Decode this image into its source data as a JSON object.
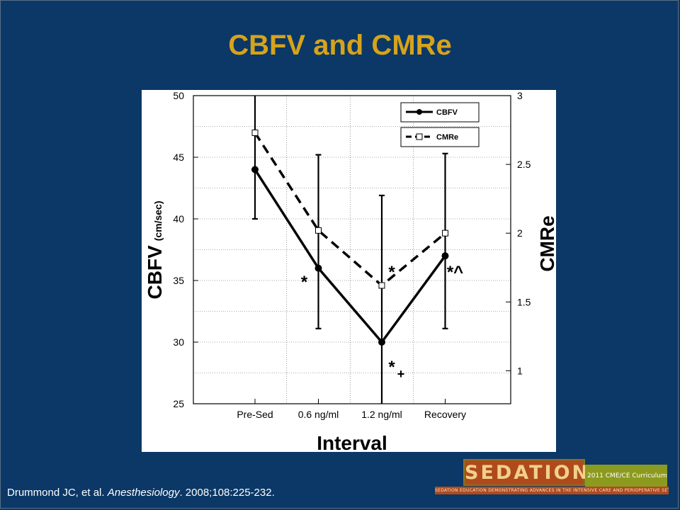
{
  "slide": {
    "title": "CBFV and CMRe",
    "citation_authors": "Drummond JC, et al.",
    "citation_journal": "Anesthesiology",
    "citation_rest": ". 2008;108:225-232."
  },
  "logo": {
    "main": "SEDATION™",
    "side": "2011 CME/CE Curriculum",
    "strip": "SEDATION EDUCATION DEMONSTRATING ADVANCES IN THE INTENSIVE CARE AND PERIOPERATIVE SETTINGS"
  },
  "colors": {
    "background": "#0b3866",
    "title": "#d7a31a",
    "citation": "#ffffff",
    "logo_orange": "#b04a1e",
    "logo_olive": "#8c9a1f"
  },
  "chart_data": {
    "type": "line",
    "xlabel": "Interval",
    "ylabel_main": "CBFV",
    "ylabel_unit": "(cm/sec)",
    "y2label": "CMRe",
    "categories": [
      "Pre-Sed",
      "0.6 ng/ml",
      "1.2 ng/ml",
      "Recovery"
    ],
    "ylim": [
      25,
      50
    ],
    "yticks": [
      25,
      30,
      35,
      40,
      45,
      50
    ],
    "y2lim": [
      0.76,
      3
    ],
    "y2ticks": [
      1,
      1.5,
      2,
      2.5,
      3
    ],
    "grid": true,
    "legend_position": "top-right",
    "series": [
      {
        "name": "CBFV",
        "axis": "left",
        "style": "solid",
        "marker": "filled-circle",
        "values": [
          44,
          36,
          30,
          37
        ],
        "error_upper": [
          50,
          45.2,
          41.9,
          45.3
        ],
        "error_lower": [
          40,
          31.1,
          25,
          31.1
        ]
      },
      {
        "name": "CMRe",
        "axis": "right",
        "style": "dashed",
        "marker": "open-square",
        "values": [
          2.73,
          2.02,
          1.62,
          2.0
        ]
      }
    ],
    "annotations": [
      {
        "text": "*",
        "category": "0.6 ng/ml",
        "value": 35
      },
      {
        "text": "*",
        "category": "1.2 ng/ml",
        "value": 35.8
      },
      {
        "text": "*",
        "category": "1.2 ng/ml",
        "value": 28.1,
        "sub": "+"
      },
      {
        "text": "*^",
        "category": "Recovery",
        "value": 35.8
      }
    ]
  }
}
